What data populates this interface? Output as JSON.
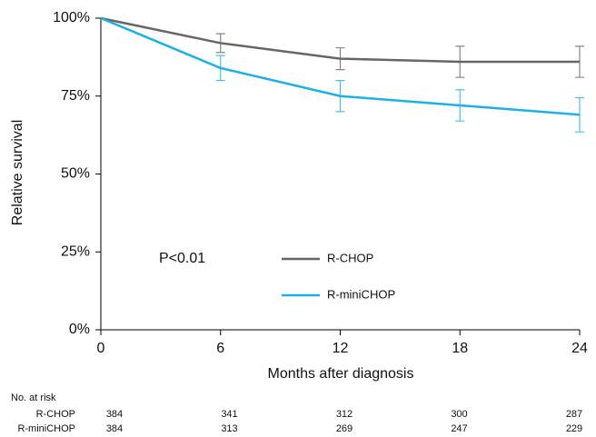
{
  "chart_data": {
    "type": "line",
    "y_label": "Relative survival",
    "x_label": "Months after diagnosis",
    "annotation": "P<0.01",
    "x": [
      0,
      6,
      12,
      18,
      24
    ],
    "xlim": [
      0,
      24
    ],
    "xticks": [
      0,
      6,
      12,
      18,
      24
    ],
    "ylim": [
      0,
      100
    ],
    "yticks": [
      {
        "value": 0,
        "label": "0%"
      },
      {
        "value": 25,
        "label": "25%"
      },
      {
        "value": 50,
        "label": "50%"
      },
      {
        "value": 75,
        "label": "75%"
      },
      {
        "value": 100,
        "label": "100%"
      }
    ],
    "grid": false,
    "series": [
      {
        "name": "R-CHOP",
        "color": "#666666",
        "values": [
          100,
          92,
          87,
          86,
          86
        ],
        "errors": [
          null,
          3,
          3.5,
          5,
          5
        ]
      },
      {
        "name": "R-miniCHOP",
        "color": "#1ab0e8",
        "values": [
          100,
          84,
          75,
          72,
          69
        ],
        "errors": [
          null,
          4,
          5,
          5,
          5.5
        ]
      }
    ],
    "risk_table": {
      "title": "No. at risk",
      "rows": [
        {
          "name": "R-CHOP",
          "values": [
            "384",
            "341",
            "312",
            "300",
            "287"
          ]
        },
        {
          "name": "R-miniCHOP",
          "values": [
            "384",
            "313",
            "269",
            "247",
            "229"
          ]
        }
      ]
    }
  }
}
